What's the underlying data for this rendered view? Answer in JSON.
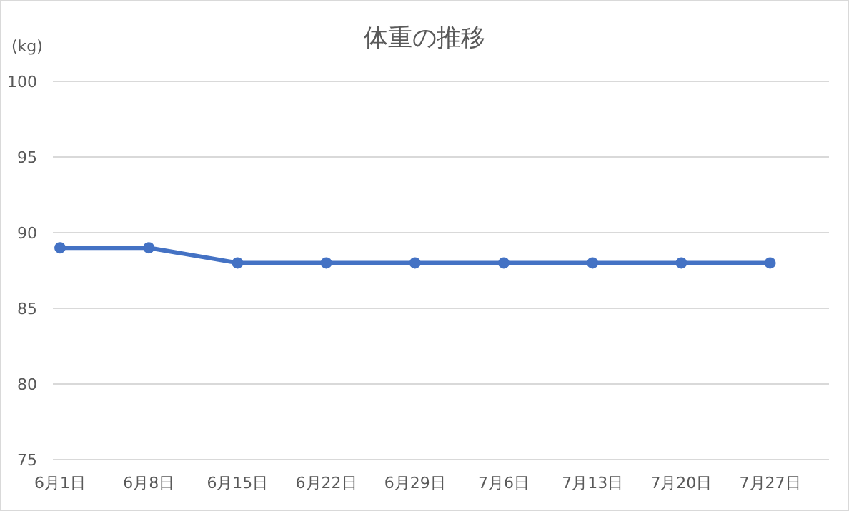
{
  "chart_data": {
    "type": "line",
    "title": "体重の推移",
    "ylabel": "(kg)",
    "categories": [
      "6月1日",
      "6月8日",
      "6月15日",
      "6月22日",
      "6月29日",
      "7月6日",
      "7月13日",
      "7月20日",
      "7月27日"
    ],
    "series": [
      {
        "color": "#4472c4",
        "values": [
          89,
          89,
          88,
          88,
          88,
          88,
          88,
          88,
          88
        ]
      }
    ],
    "ylim": [
      75,
      100
    ],
    "yticks": [
      75,
      80,
      85,
      90,
      95,
      100
    ],
    "grid": "y",
    "marker": "circle",
    "line_style": "solid"
  }
}
